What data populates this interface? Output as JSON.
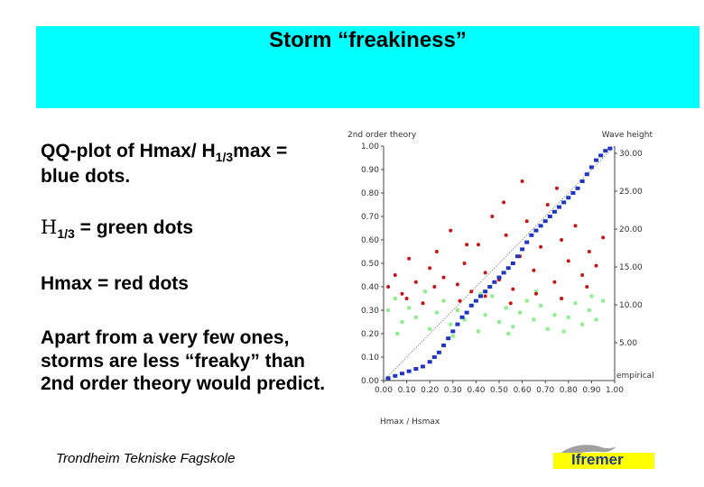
{
  "title": "Storm “freakiness”",
  "text": {
    "line1_pre": "QQ-plot of Hmax/ H",
    "line1_sub": "1/3",
    "line1_post": "max = blue dots.",
    "line2_h": "H",
    "line2_sub": "1/3",
    "line2_post": " = green dots",
    "line3": "Hmax = red dots",
    "line4": "Apart from a very few ones, storms are less “freaky” than 2nd order theory would predict."
  },
  "footer": "Trondheim Tekniske Fagskole",
  "logo": "Ifremer",
  "chart_data": {
    "type": "scatter",
    "left_axis_label": "2nd order theory",
    "right_axis_label": "Wave height",
    "x_axis_label": "Hmax / Hsmax",
    "corner_label": "empirical",
    "left_ticks": [
      "0.00",
      "0.10",
      "0.20",
      "0.30",
      "0.40",
      "0.50",
      "0.60",
      "0.70",
      "0.80",
      "0.90",
      "1.00"
    ],
    "right_ticks": [
      "5.00",
      "10.00",
      "15.00",
      "20.00",
      "25.00",
      "30.00"
    ],
    "x_ticks": [
      "0.00",
      "0.10",
      "0.20",
      "0.30",
      "0.40",
      "0.50",
      "0.60",
      "0.70",
      "0.80",
      "0.90",
      "1.00"
    ],
    "xlim": [
      0,
      1
    ],
    "ylim": [
      0,
      1
    ],
    "colors": {
      "qq": "#1f35c4",
      "hmax": "#c81414",
      "h13": "#90ee90",
      "diag": "#777777"
    },
    "series": [
      {
        "name": "Hmax/H1/3max",
        "color": "blue",
        "points": [
          [
            0.02,
            0.01
          ],
          [
            0.05,
            0.02
          ],
          [
            0.08,
            0.03
          ],
          [
            0.11,
            0.04
          ],
          [
            0.14,
            0.05
          ],
          [
            0.17,
            0.06
          ],
          [
            0.2,
            0.08
          ],
          [
            0.22,
            0.1
          ],
          [
            0.24,
            0.12
          ],
          [
            0.26,
            0.15
          ],
          [
            0.28,
            0.18
          ],
          [
            0.3,
            0.21
          ],
          [
            0.32,
            0.24
          ],
          [
            0.34,
            0.27
          ],
          [
            0.36,
            0.29
          ],
          [
            0.38,
            0.32
          ],
          [
            0.4,
            0.34
          ],
          [
            0.42,
            0.36
          ],
          [
            0.44,
            0.38
          ],
          [
            0.46,
            0.4
          ],
          [
            0.48,
            0.42
          ],
          [
            0.5,
            0.44
          ],
          [
            0.52,
            0.46
          ],
          [
            0.54,
            0.48
          ],
          [
            0.56,
            0.5
          ],
          [
            0.58,
            0.53
          ],
          [
            0.6,
            0.56
          ],
          [
            0.62,
            0.59
          ],
          [
            0.64,
            0.62
          ],
          [
            0.66,
            0.64
          ],
          [
            0.68,
            0.66
          ],
          [
            0.7,
            0.68
          ],
          [
            0.72,
            0.7
          ],
          [
            0.74,
            0.72
          ],
          [
            0.76,
            0.74
          ],
          [
            0.78,
            0.76
          ],
          [
            0.8,
            0.78
          ],
          [
            0.82,
            0.8
          ],
          [
            0.84,
            0.82
          ],
          [
            0.86,
            0.85
          ],
          [
            0.88,
            0.88
          ],
          [
            0.9,
            0.91
          ],
          [
            0.92,
            0.94
          ],
          [
            0.94,
            0.96
          ],
          [
            0.96,
            0.98
          ],
          [
            0.98,
            0.99
          ]
        ]
      },
      {
        "name": "Hmax",
        "color": "red",
        "points": [
          [
            0.02,
            0.4
          ],
          [
            0.05,
            0.45
          ],
          [
            0.08,
            0.37
          ],
          [
            0.11,
            0.52
          ],
          [
            0.14,
            0.42
          ],
          [
            0.17,
            0.33
          ],
          [
            0.2,
            0.48
          ],
          [
            0.23,
            0.55
          ],
          [
            0.26,
            0.44
          ],
          [
            0.29,
            0.64
          ],
          [
            0.32,
            0.41
          ],
          [
            0.35,
            0.5
          ],
          [
            0.38,
            0.38
          ],
          [
            0.41,
            0.58
          ],
          [
            0.44,
            0.46
          ],
          [
            0.47,
            0.7
          ],
          [
            0.5,
            0.43
          ],
          [
            0.53,
            0.62
          ],
          [
            0.56,
            0.39
          ],
          [
            0.59,
            0.53
          ],
          [
            0.62,
            0.68
          ],
          [
            0.65,
            0.47
          ],
          [
            0.68,
            0.57
          ],
          [
            0.71,
            0.75
          ],
          [
            0.74,
            0.42
          ],
          [
            0.77,
            0.6
          ],
          [
            0.8,
            0.51
          ],
          [
            0.83,
            0.66
          ],
          [
            0.86,
            0.45
          ],
          [
            0.89,
            0.55
          ],
          [
            0.92,
            0.49
          ],
          [
            0.95,
            0.61
          ],
          [
            0.1,
            0.35
          ],
          [
            0.22,
            0.4
          ],
          [
            0.33,
            0.34
          ],
          [
            0.44,
            0.36
          ],
          [
            0.55,
            0.33
          ],
          [
            0.66,
            0.37
          ],
          [
            0.77,
            0.35
          ],
          [
            0.88,
            0.4
          ],
          [
            0.6,
            0.85
          ],
          [
            0.75,
            0.82
          ],
          [
            0.52,
            0.76
          ],
          [
            0.36,
            0.58
          ]
        ]
      },
      {
        "name": "H1/3",
        "color": "green",
        "points": [
          [
            0.02,
            0.3
          ],
          [
            0.05,
            0.35
          ],
          [
            0.08,
            0.25
          ],
          [
            0.11,
            0.31
          ],
          [
            0.14,
            0.27
          ],
          [
            0.17,
            0.33
          ],
          [
            0.2,
            0.22
          ],
          [
            0.23,
            0.29
          ],
          [
            0.26,
            0.34
          ],
          [
            0.29,
            0.24
          ],
          [
            0.32,
            0.3
          ],
          [
            0.35,
            0.26
          ],
          [
            0.38,
            0.32
          ],
          [
            0.41,
            0.21
          ],
          [
            0.44,
            0.28
          ],
          [
            0.47,
            0.36
          ],
          [
            0.5,
            0.25
          ],
          [
            0.53,
            0.31
          ],
          [
            0.56,
            0.23
          ],
          [
            0.59,
            0.29
          ],
          [
            0.62,
            0.34
          ],
          [
            0.65,
            0.26
          ],
          [
            0.68,
            0.32
          ],
          [
            0.71,
            0.22
          ],
          [
            0.74,
            0.28
          ],
          [
            0.77,
            0.35
          ],
          [
            0.8,
            0.27
          ],
          [
            0.83,
            0.33
          ],
          [
            0.86,
            0.24
          ],
          [
            0.89,
            0.3
          ],
          [
            0.92,
            0.26
          ],
          [
            0.95,
            0.34
          ],
          [
            0.06,
            0.2
          ],
          [
            0.18,
            0.38
          ],
          [
            0.3,
            0.19
          ],
          [
            0.42,
            0.37
          ],
          [
            0.54,
            0.2
          ],
          [
            0.66,
            0.38
          ],
          [
            0.78,
            0.21
          ],
          [
            0.9,
            0.36
          ]
        ]
      }
    ]
  }
}
